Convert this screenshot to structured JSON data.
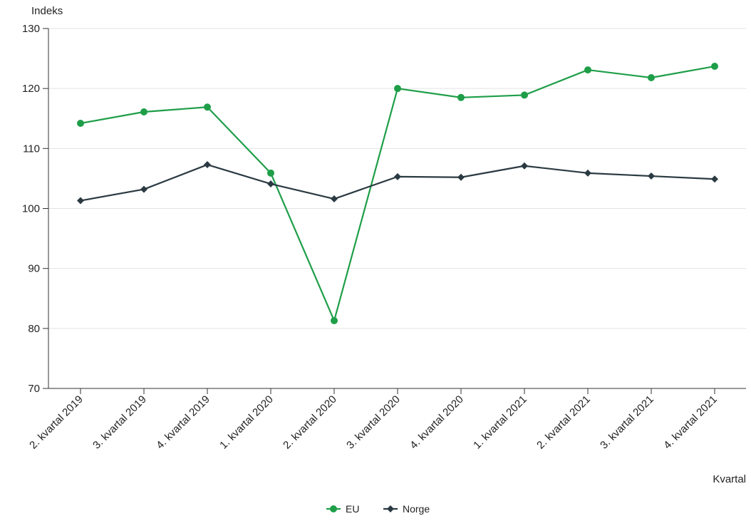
{
  "chart_data": {
    "type": "line",
    "title": "",
    "ylabel": "Indeks",
    "xlabel": "Kvartal",
    "ylim": [
      70,
      130
    ],
    "yticks": [
      70,
      80,
      90,
      100,
      110,
      120,
      130
    ],
    "grid": true,
    "legend_position": "bottom-center",
    "categories": [
      "2. kvartal 2019",
      "3. kvartal 2019",
      "4. kvartal 2019",
      "1. kvartal 2020",
      "2. kvartal 2020",
      "3. kvartal 2020",
      "4. kvartal 2020",
      "1. kvartal 2021",
      "2. kvartal 2021",
      "3. kvartal 2021",
      "4. kvartal 2021"
    ],
    "series": [
      {
        "name": "EU",
        "color": "#1e9e48",
        "marker": "circle",
        "values": [
          114.2,
          116.1,
          116.9,
          105.9,
          81.3,
          120.0,
          118.5,
          118.9,
          123.1,
          121.8,
          123.7
        ]
      },
      {
        "name": "Norge",
        "color": "#2b3a42",
        "marker": "diamond",
        "values": [
          101.3,
          103.2,
          107.3,
          104.1,
          101.6,
          105.3,
          105.2,
          107.1,
          105.9,
          105.4,
          104.9
        ]
      }
    ]
  }
}
